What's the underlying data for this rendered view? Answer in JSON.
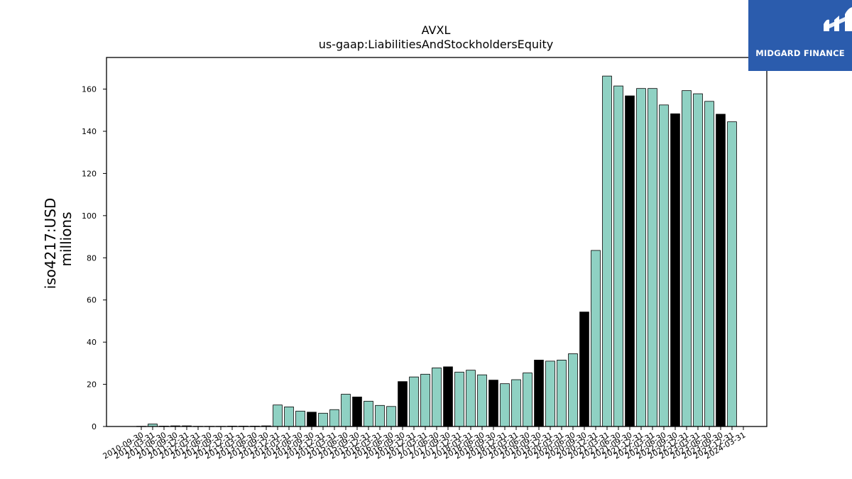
{
  "logo": {
    "text": "MIDGARD FINANCE"
  },
  "chart_data": {
    "type": "bar",
    "title": "AVXL",
    "subtitle": "us-gaap:LiabilitiesAndStockholdersEquity",
    "ylabel": "iso4217:USD",
    "ylabel2": "millions",
    "xlabel": "",
    "ylim": [
      0,
      175
    ],
    "yticks": [
      0,
      20,
      40,
      60,
      80,
      100,
      120,
      140,
      160
    ],
    "grid": false,
    "colors": {
      "quarter": "#8fd1c3",
      "fiscal_year_end": "#000000",
      "edge": "#000000"
    },
    "categories": [
      "2010-09-30",
      "2011-03-31",
      "2011-06-30",
      "2011-09-30",
      "2011-12-31",
      "2012-03-31",
      "2012-06-30",
      "2012-09-30",
      "2012-12-31",
      "2013-03-31",
      "2013-06-30",
      "2013-09-30",
      "2013-12-31",
      "2014-03-31",
      "2014-06-30",
      "2014-09-30",
      "2014-12-31",
      "2015-03-31",
      "2015-06-30",
      "2015-09-30",
      "2015-12-31",
      "2016-03-31",
      "2016-06-30",
      "2016-09-30",
      "2016-12-31",
      "2017-03-31",
      "2017-06-30",
      "2017-09-30",
      "2017-12-31",
      "2018-03-31",
      "2018-06-30",
      "2018-09-30",
      "2018-12-31",
      "2019-03-31",
      "2019-06-30",
      "2019-09-30",
      "2019-12-31",
      "2020-03-31",
      "2020-06-30",
      "2020-09-30",
      "2020-12-31",
      "2021-03-31",
      "2021-06-30",
      "2021-09-30",
      "2021-12-31",
      "2022-03-31",
      "2022-06-30",
      "2022-09-30",
      "2022-12-31",
      "2023-03-31",
      "2023-06-30",
      "2023-09-30",
      "2023-12-31",
      "2024-03-31"
    ],
    "values": [
      0.1,
      1.2,
      0.2,
      0.3,
      0.3,
      0.1,
      0.1,
      0.1,
      0.2,
      0.2,
      0.2,
      0.3,
      10.2,
      9.3,
      7.3,
      6.8,
      6.3,
      8.0,
      15.3,
      14.0,
      12.0,
      10.0,
      9.5,
      21.3,
      23.5,
      24.8,
      27.8,
      28.3,
      25.8,
      26.7,
      24.5,
      22.0,
      20.3,
      22.2,
      25.4,
      31.5,
      31.0,
      31.5,
      34.5,
      54.3,
      83.5,
      166.2,
      161.5,
      156.8,
      160.3,
      160.3,
      152.5,
      148.3,
      159.3,
      157.8,
      154.2,
      148.1,
      144.5,
      0
    ],
    "fiscal_year_end": [
      false,
      false,
      false,
      false,
      false,
      false,
      false,
      false,
      false,
      false,
      false,
      false,
      false,
      false,
      false,
      true,
      false,
      false,
      false,
      true,
      false,
      false,
      false,
      true,
      false,
      false,
      false,
      true,
      false,
      false,
      false,
      true,
      false,
      false,
      false,
      true,
      false,
      false,
      false,
      true,
      false,
      false,
      false,
      true,
      false,
      false,
      false,
      true,
      false,
      false,
      false,
      true,
      false,
      false
    ]
  }
}
